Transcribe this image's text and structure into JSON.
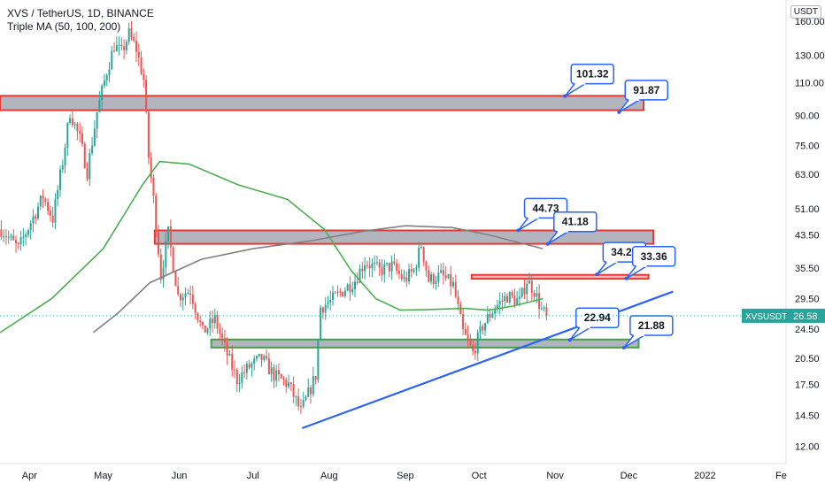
{
  "header": {
    "title": "XVS / TetherUS, 1D, BINANCE",
    "indicator": "Triple MA (50, 100, 200)"
  },
  "currency_label": "USDT",
  "price_tag": {
    "symbol": "XVSUSDT",
    "value": "26.58",
    "raw": 26.58,
    "color": "#26a69a"
  },
  "colors": {
    "up": "#26a69a",
    "down": "#ef5350",
    "ma50": "#4caf50",
    "ma200": "#808080",
    "trendline": "#2962ff",
    "zone_red_border": "#e53935",
    "zone_gray_fill": "#b2b5be",
    "zone_green_border": "#43a047",
    "zone_green_fill": "#b2b5be"
  },
  "chart_data": {
    "type": "candlestick",
    "yscale": "log",
    "ylim": [
      10.8,
      182
    ],
    "y_ticks": [
      "12.00",
      "14.50",
      "17.50",
      "20.50",
      "24.50",
      "29.50",
      "35.50",
      "43.50",
      "51.00",
      "63.00",
      "75.00",
      "90.00",
      "110.00",
      "130.00",
      "160.00"
    ],
    "x_range": [
      "2021-03-20",
      "2022-02-03"
    ],
    "x_ticks": [
      {
        "label": "Apr",
        "date": "2021-04-01"
      },
      {
        "label": "May",
        "date": "2021-05-01"
      },
      {
        "label": "Jun",
        "date": "2021-06-01"
      },
      {
        "label": "Jul",
        "date": "2021-07-01"
      },
      {
        "label": "Aug",
        "date": "2021-08-01"
      },
      {
        "label": "Sep",
        "date": "2021-09-01"
      },
      {
        "label": "Oct",
        "date": "2021-10-01"
      },
      {
        "label": "Nov",
        "date": "2021-11-01"
      },
      {
        "label": "Dec",
        "date": "2021-12-01"
      },
      {
        "label": "2022",
        "date": "2022-01-01"
      },
      {
        "label": "Fe",
        "date": "2022-02-01"
      }
    ],
    "price_path": {
      "start": "2021-03-20",
      "end": "2021-10-28",
      "anchors": [
        [
          "2021-03-20",
          45
        ],
        [
          "2021-03-27",
          40
        ],
        [
          "2021-04-01",
          47
        ],
        [
          "2021-04-06",
          55
        ],
        [
          "2021-04-10",
          48
        ],
        [
          "2021-04-14",
          68
        ],
        [
          "2021-04-17",
          92
        ],
        [
          "2021-04-21",
          78
        ],
        [
          "2021-04-24",
          64
        ],
        [
          "2021-04-28",
          92
        ],
        [
          "2021-05-02",
          118
        ],
        [
          "2021-05-05",
          138
        ],
        [
          "2021-05-08",
          132
        ],
        [
          "2021-05-11",
          148
        ],
        [
          "2021-05-14",
          135
        ],
        [
          "2021-05-17",
          112
        ],
        [
          "2021-05-19",
          70
        ],
        [
          "2021-05-21",
          54
        ],
        [
          "2021-05-24",
          34
        ],
        [
          "2021-05-27",
          44
        ],
        [
          "2021-05-31",
          30
        ],
        [
          "2021-06-05",
          31
        ],
        [
          "2021-06-10",
          24
        ],
        [
          "2021-06-15",
          26
        ],
        [
          "2021-06-20",
          21
        ],
        [
          "2021-06-24",
          18
        ],
        [
          "2021-06-29",
          19.5
        ],
        [
          "2021-07-04",
          20.5
        ],
        [
          "2021-07-09",
          18.5
        ],
        [
          "2021-07-15",
          17.5
        ],
        [
          "2021-07-20",
          14.8
        ],
        [
          "2021-07-23",
          16.5
        ],
        [
          "2021-07-26",
          18.5
        ],
        [
          "2021-07-28",
          28
        ],
        [
          "2021-08-01",
          29
        ],
        [
          "2021-08-06",
          31
        ],
        [
          "2021-08-11",
          33
        ],
        [
          "2021-08-15",
          37
        ],
        [
          "2021-08-21",
          35
        ],
        [
          "2021-08-26",
          36
        ],
        [
          "2021-08-31",
          33
        ],
        [
          "2021-09-04",
          35
        ],
        [
          "2021-09-07",
          41
        ],
        [
          "2021-09-10",
          33
        ],
        [
          "2021-09-15",
          34
        ],
        [
          "2021-09-20",
          32
        ],
        [
          "2021-09-24",
          24
        ],
        [
          "2021-09-28",
          21.2
        ],
        [
          "2021-10-02",
          25
        ],
        [
          "2021-10-07",
          28
        ],
        [
          "2021-10-12",
          30
        ],
        [
          "2021-10-17",
          29
        ],
        [
          "2021-10-20",
          33
        ],
        [
          "2021-10-23",
          31
        ],
        [
          "2021-10-26",
          27.5
        ],
        [
          "2021-10-28",
          26.6
        ]
      ]
    },
    "series": [
      {
        "type": "line",
        "points": [
          [
            "2021-03-20",
            24
          ],
          [
            "2021-04-10",
            29.5
          ],
          [
            "2021-05-01",
            40
          ],
          [
            "2021-05-17",
            59
          ],
          [
            "2021-05-24",
            68
          ],
          [
            "2021-06-05",
            67
          ],
          [
            "2021-06-25",
            59
          ],
          [
            "2021-07-15",
            54
          ],
          [
            "2021-07-30",
            45
          ],
          [
            "2021-08-10",
            35
          ],
          [
            "2021-08-20",
            29.5
          ],
          [
            "2021-08-30",
            27.5
          ],
          [
            "2021-09-10",
            27.6
          ],
          [
            "2021-09-25",
            27.8
          ],
          [
            "2021-10-05",
            27.5
          ],
          [
            "2021-10-15",
            28.2
          ],
          [
            "2021-10-27",
            29.5
          ]
        ]
      },
      {
        "type": "line",
        "points": [
          [
            "2021-04-27",
            24
          ],
          [
            "2021-05-07",
            27
          ],
          [
            "2021-05-20",
            32.5
          ],
          [
            "2021-06-10",
            37.5
          ],
          [
            "2021-07-01",
            40
          ],
          [
            "2021-07-25",
            42
          ],
          [
            "2021-08-15",
            44.5
          ],
          [
            "2021-09-01",
            46
          ],
          [
            "2021-09-20",
            45.5
          ],
          [
            "2021-10-05",
            43.5
          ],
          [
            "2021-10-27",
            40
          ]
        ]
      }
    ],
    "zones": [
      {
        "from": "2021-03-20",
        "to": "2021-12-07",
        "low": 93,
        "high": 101.5,
        "style": "red_gray"
      },
      {
        "from": "2021-05-22",
        "to": "2021-12-11",
        "low": 41.2,
        "high": 44.7,
        "style": "red_gray"
      },
      {
        "from": "2021-09-28",
        "to": "2021-12-09",
        "low": 33.3,
        "high": 34.1,
        "style": "red_line"
      },
      {
        "from": "2021-06-14",
        "to": "2021-12-05",
        "low": 21.9,
        "high": 23,
        "style": "green_gray"
      }
    ],
    "trendline": {
      "from": [
        "2021-07-21",
        13.4
      ],
      "to": [
        "2021-12-19",
        30.8
      ]
    },
    "callouts": [
      {
        "label": "101.32",
        "anchor": [
          "2021-11-05",
          101.32
        ]
      },
      {
        "label": "91.87",
        "anchor": [
          "2021-11-27",
          91.87
        ]
      },
      {
        "label": "44.73",
        "anchor": [
          "2021-10-17",
          44.73
        ]
      },
      {
        "label": "41.18",
        "anchor": [
          "2021-10-29",
          41.18
        ]
      },
      {
        "label": "34.20",
        "anchor": [
          "2021-11-18",
          34.2
        ]
      },
      {
        "label": "33.36",
        "anchor": [
          "2021-11-30",
          33.36
        ]
      },
      {
        "label": "22.94",
        "anchor": [
          "2021-11-07",
          22.94
        ]
      },
      {
        "label": "21.88",
        "anchor": [
          "2021-11-29",
          21.88
        ]
      }
    ],
    "last_price": 26.58,
    "legend": "none",
    "grid": false
  }
}
